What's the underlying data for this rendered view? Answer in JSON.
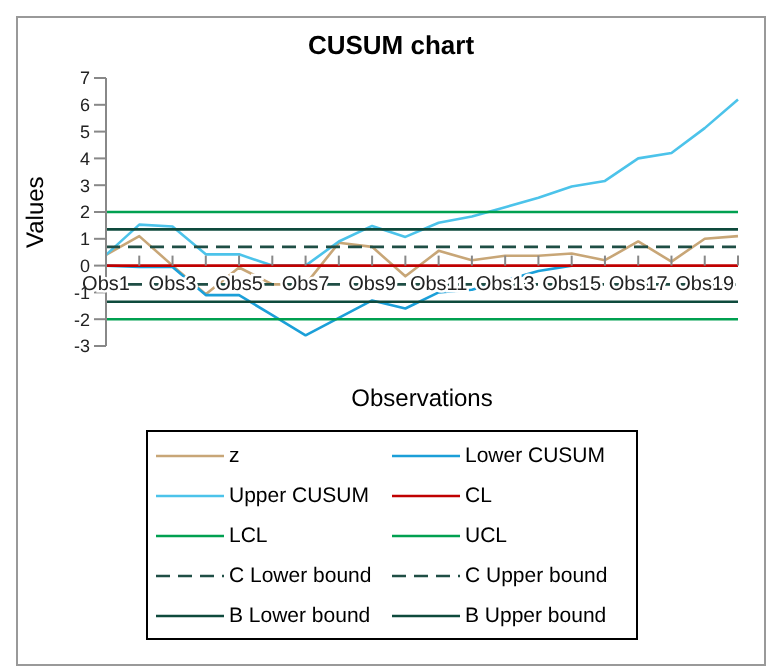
{
  "chart_data": {
    "type": "line",
    "title": "CUSUM chart",
    "xlabel": "Observations",
    "ylabel": "Values",
    "categories": [
      "Obs1",
      null,
      "Obs3",
      null,
      "Obs5",
      null,
      "Obs7",
      null,
      "Obs9",
      null,
      "Obs11",
      null,
      "Obs13",
      null,
      "Obs15",
      null,
      "Obs17",
      null,
      "Obs19",
      null
    ],
    "ylim": [
      -3,
      7
    ],
    "yticks": [
      -3,
      -2,
      -1,
      0,
      1,
      2,
      3,
      4,
      5,
      6,
      7
    ],
    "grid": false,
    "legend": "bottom",
    "marker": "none",
    "line_style": "solid",
    "series": [
      {
        "name": "z",
        "color": "#c8a677",
        "values": [
          0.4,
          1.1,
          0,
          -1.07,
          -0.07,
          -0.7,
          -0.7,
          0.85,
          0.7,
          -0.4,
          0.55,
          0.2,
          0.37,
          0.37,
          0.45,
          0.2,
          0.9,
          0.15,
          1.0,
          1.1
        ]
      },
      {
        "name": "Lower CUSUM",
        "color": "#1b9fd8",
        "values": [
          0,
          -0.05,
          -0.05,
          -1.1,
          -1.1,
          -1.85,
          -2.6,
          -1.95,
          -1.3,
          -1.6,
          -1.0,
          -0.9,
          -0.55,
          -0.2,
          0,
          0,
          null,
          null,
          null,
          null
        ]
      },
      {
        "name": "Upper CUSUM",
        "color": "#4cc3ea",
        "values": [
          0.4,
          1.53,
          1.46,
          0.42,
          0.42,
          0,
          0,
          0.9,
          1.48,
          1.07,
          1.6,
          1.83,
          2.18,
          2.53,
          2.95,
          3.16,
          4.0,
          4.2,
          5.13,
          6.2
        ]
      },
      {
        "name": "CL",
        "color": "#c00000",
        "values": [
          0,
          0,
          0,
          0,
          0,
          0,
          0,
          0,
          0,
          0,
          0,
          0,
          0,
          0,
          0,
          0,
          0,
          0,
          0,
          0
        ]
      },
      {
        "name": "LCL",
        "color": "#00a050",
        "values": [
          -2,
          -2,
          -2,
          -2,
          -2,
          -2,
          -2,
          -2,
          -2,
          -2,
          -2,
          -2,
          -2,
          -2,
          -2,
          -2,
          -2,
          -2,
          -2,
          -2
        ]
      },
      {
        "name": "UCL",
        "color": "#00a050",
        "values": [
          2,
          2,
          2,
          2,
          2,
          2,
          2,
          2,
          2,
          2,
          2,
          2,
          2,
          2,
          2,
          2,
          2,
          2,
          2,
          2
        ]
      },
      {
        "name": "C Lower bound",
        "color": "#1f4e45",
        "line_style": "dashed",
        "values": [
          -0.7,
          -0.7,
          -0.7,
          -0.7,
          -0.7,
          -0.7,
          -0.7,
          -0.7,
          -0.7,
          -0.7,
          -0.7,
          -0.7,
          -0.7,
          -0.7,
          -0.7,
          -0.7,
          -0.7,
          -0.7,
          -0.7,
          -0.7
        ]
      },
      {
        "name": "C Upper bound",
        "color": "#1f4e45",
        "line_style": "dashed",
        "values": [
          0.7,
          0.7,
          0.7,
          0.7,
          0.7,
          0.7,
          0.7,
          0.7,
          0.7,
          0.7,
          0.7,
          0.7,
          0.7,
          0.7,
          0.7,
          0.7,
          0.7,
          0.7,
          0.7,
          0.7
        ]
      },
      {
        "name": "B Lower bound",
        "color": "#0e4a3c",
        "values": [
          -1.35,
          -1.35,
          -1.35,
          -1.35,
          -1.35,
          -1.35,
          -1.35,
          -1.35,
          -1.35,
          -1.35,
          -1.35,
          -1.35,
          -1.35,
          -1.35,
          -1.35,
          -1.35,
          -1.35,
          -1.35,
          -1.35,
          -1.35
        ]
      },
      {
        "name": "B Upper bound",
        "color": "#0e4a3c",
        "values": [
          1.35,
          1.35,
          1.35,
          1.35,
          1.35,
          1.35,
          1.35,
          1.35,
          1.35,
          1.35,
          1.35,
          1.35,
          1.35,
          1.35,
          1.35,
          1.35,
          1.35,
          1.35,
          1.35,
          1.35
        ]
      }
    ]
  }
}
